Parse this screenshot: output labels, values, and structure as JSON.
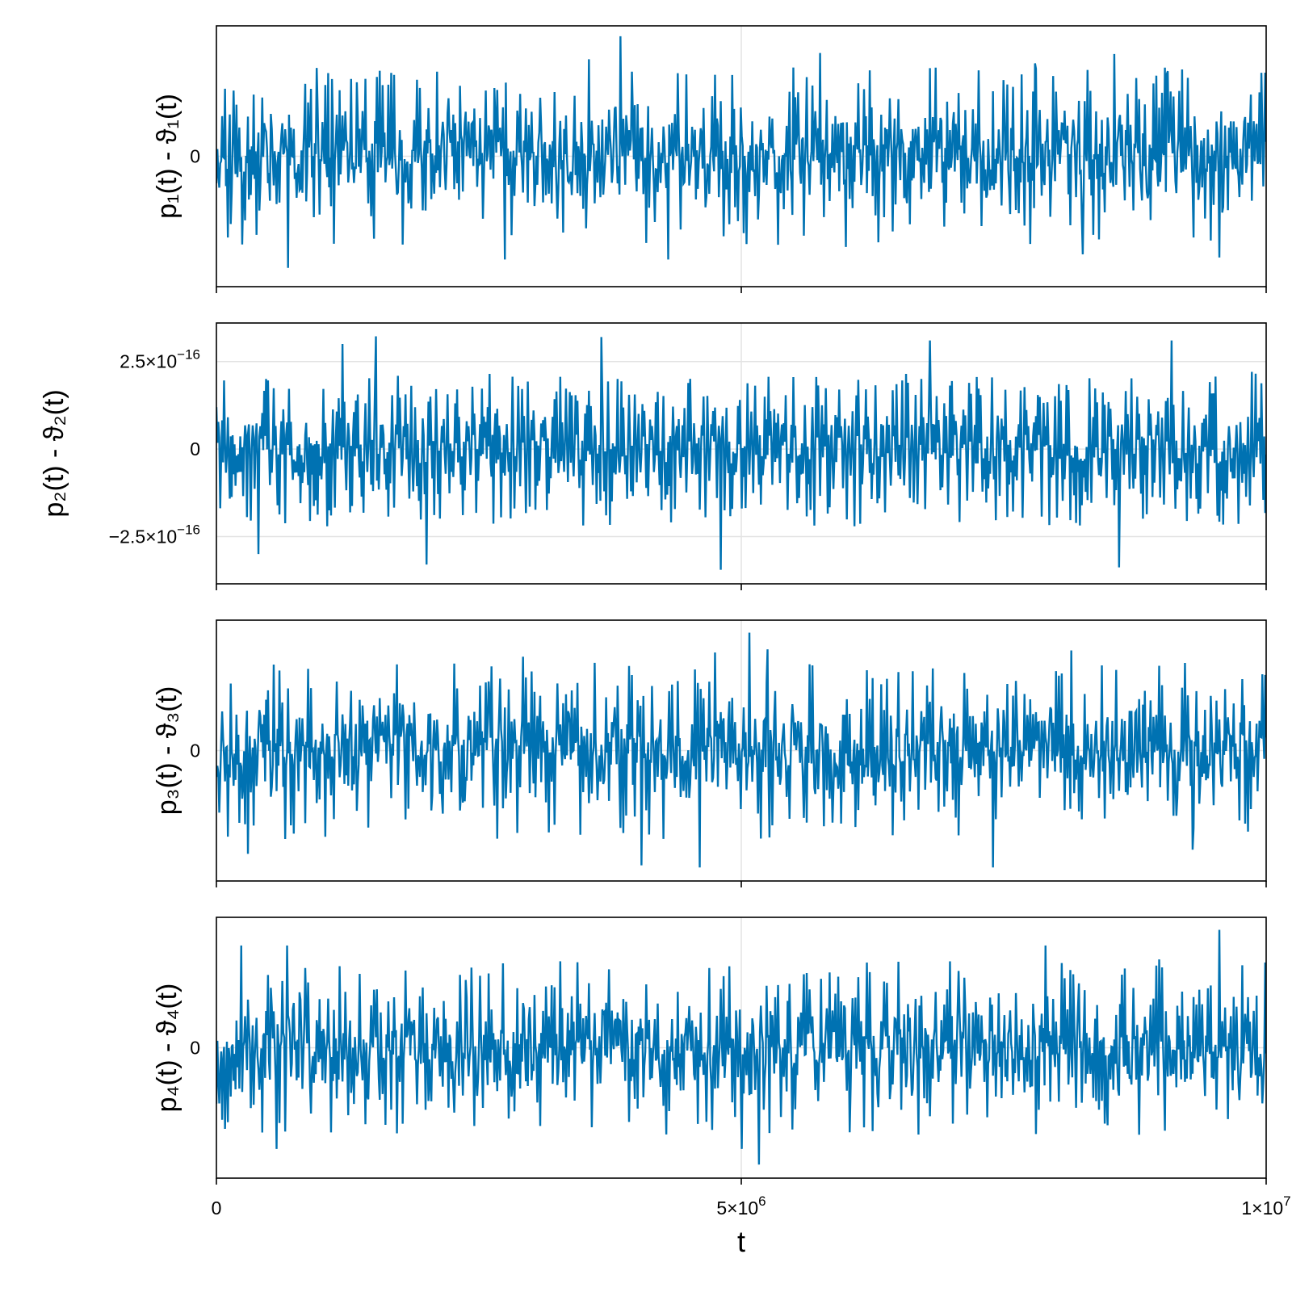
{
  "colors": {
    "series": "#0072b2",
    "grid": "#e3e3e3",
    "axes": "#000000"
  },
  "chart_data": [
    {
      "type": "line",
      "ylabel": "p₁(t) - ϑ₁(t)",
      "y_ticks": [
        {
          "value": 0,
          "label": "0"
        }
      ],
      "ylim": [
        -1.25,
        1.25
      ],
      "xlim": [
        0,
        10000000
      ],
      "grid": true,
      "series": [
        {
          "amplitude": 1.0,
          "seed": 11,
          "spike_every": 3,
          "spikes": [
            [
              0.385,
              1.15
            ],
            [
              0.355,
              0.93
            ],
            [
              0.11,
              0.74
            ],
            [
              0.068,
              -1.07
            ],
            [
              0.275,
              -0.99
            ],
            [
              0.43,
              -0.99
            ],
            [
              0.55,
              0.85
            ],
            [
              0.575,
              0.99
            ],
            [
              0.6,
              -0.87
            ],
            [
              0.75,
              0.73
            ],
            [
              0.78,
              0.89
            ],
            [
              0.825,
              -0.94
            ],
            [
              0.855,
              0.98
            ],
            [
              0.905,
              0.79
            ],
            [
              0.955,
              -0.97
            ],
            [
              0.995,
              0.8
            ]
          ]
        }
      ]
    },
    {
      "type": "line",
      "ylabel": "p₂(t) - ϑ₂(t)",
      "y_ticks": [
        {
          "value": 2.5e-16,
          "base": "2.5×10",
          "exp": "−16"
        },
        {
          "value": 0,
          "label": "0"
        },
        {
          "value": -2.5e-16,
          "base": "−2.5×10",
          "exp": "−16"
        }
      ],
      "ylim": [
        -3.85e-16,
        3.6e-16
      ],
      "xlim": [
        0,
        10000000
      ],
      "grid": true,
      "series": [
        {
          "amplitude": 2.6e-16,
          "seed": 23,
          "spike_every": 2,
          "spikes": [
            [
              0.152,
              3.22e-16
            ],
            [
              0.367,
              3.2e-16
            ],
            [
              0.2,
              -3.3e-16
            ],
            [
              0.48,
              -3.45e-16
            ],
            [
              0.86,
              -3.38e-16
            ],
            [
              0.68,
              3.1e-16
            ],
            [
              0.91,
              3.1e-16
            ],
            [
              0.12,
              3e-16
            ],
            [
              0.04,
              -3e-16
            ]
          ]
        }
      ]
    },
    {
      "type": "line",
      "ylabel": "p₃(t) - ϑ₃(t)",
      "y_ticks": [
        {
          "value": 0,
          "label": "0"
        }
      ],
      "ylim": [
        -1.25,
        1.25
      ],
      "xlim": [
        0,
        10000000
      ],
      "grid": true,
      "series": [
        {
          "amplitude": 1.0,
          "seed": 37,
          "spike_every": 3,
          "spikes": [
            [
              0.508,
              1.13
            ],
            [
              0.475,
              0.94
            ],
            [
              0.525,
              0.97
            ],
            [
              0.292,
              0.9
            ],
            [
              0.814,
              0.96
            ],
            [
              0.405,
              -1.1
            ],
            [
              0.46,
              -1.12
            ],
            [
              0.74,
              -1.12
            ],
            [
              0.03,
              -0.99
            ],
            [
              0.93,
              -0.95
            ]
          ]
        }
      ]
    },
    {
      "type": "line",
      "ylabel": "p₄(t) - ϑ₄(t)",
      "y_ticks": [
        {
          "value": 0,
          "label": "0"
        }
      ],
      "ylim": [
        -1.25,
        1.25
      ],
      "xlim": [
        0,
        10000000
      ],
      "xlabel": "t",
      "x_ticks": [
        {
          "value": 0,
          "label": "0"
        },
        {
          "value": 5000000,
          "base": "5×10",
          "exp": "6"
        },
        {
          "value": 10000000,
          "base": "1×10",
          "exp": "7"
        }
      ],
      "grid": true,
      "series": [
        {
          "amplitude": 1.0,
          "seed": 53,
          "spike_every": 3,
          "spikes": [
            [
              0.955,
              1.13
            ],
            [
              0.024,
              0.98
            ],
            [
              0.067,
              0.98
            ],
            [
              0.517,
              -1.12
            ],
            [
              0.057,
              -0.97
            ],
            [
              0.79,
              0.98
            ],
            [
              0.5,
              -0.97
            ]
          ]
        }
      ]
    }
  ]
}
